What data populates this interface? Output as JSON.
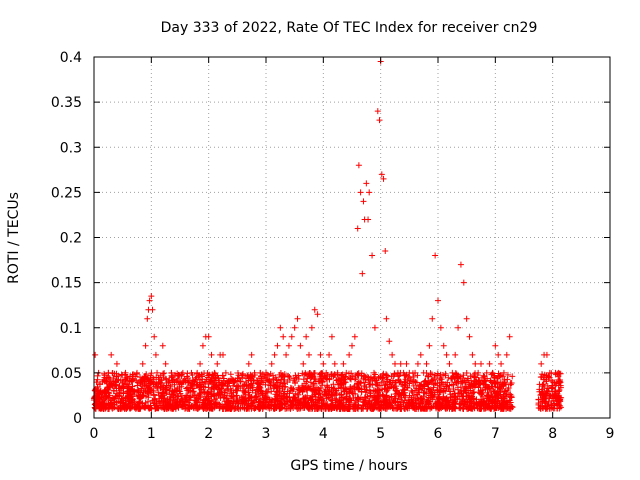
{
  "chart_data": {
    "type": "scatter",
    "title": "Day 333 of 2022, Rate Of TEC Index for receiver cn29",
    "xlabel": "GPS time / hours",
    "ylabel": "ROTI / TECUs",
    "xlim": [
      0,
      9
    ],
    "ylim": [
      0,
      0.4
    ],
    "x_ticks": [
      0,
      1,
      2,
      3,
      4,
      5,
      6,
      7,
      8,
      9
    ],
    "x_tick_labels": [
      "0",
      "1",
      "2",
      "3",
      "4",
      "5",
      "6",
      "7",
      "8",
      "9"
    ],
    "y_ticks": [
      0,
      0.05,
      0.1,
      0.15,
      0.2,
      0.25,
      0.3,
      0.35,
      0.4
    ],
    "y_tick_labels": [
      "0",
      "0.05",
      "0.1",
      "0.15",
      "0.2",
      "0.25",
      "0.3",
      "0.35",
      "0.4"
    ],
    "grid": true,
    "marker": "+",
    "color": "#ff0000",
    "series": [
      {
        "name": "ROTI",
        "x": [
          0.0,
          0.02,
          0.05,
          0.08,
          0.1,
          0.12,
          0.15,
          0.18,
          0.2,
          0.25,
          0.3,
          0.35,
          0.38,
          0.4,
          0.45,
          0.5,
          0.55,
          0.6,
          0.65,
          0.7,
          0.75,
          0.8,
          0.85,
          0.9,
          0.93,
          0.95,
          0.97,
          1.0,
          1.02,
          1.05,
          1.08,
          1.1,
          1.15,
          1.2,
          1.25,
          1.3,
          1.35,
          1.4,
          1.45,
          1.5,
          1.55,
          1.6,
          1.65,
          1.7,
          1.75,
          1.8,
          1.85,
          1.9,
          1.95,
          2.0,
          2.05,
          2.1,
          2.15,
          2.2,
          2.25,
          2.3,
          2.35,
          2.4,
          2.45,
          2.5,
          2.55,
          2.6,
          2.65,
          2.7,
          2.75,
          2.8,
          2.85,
          2.9,
          2.95,
          3.0,
          3.05,
          3.1,
          3.15,
          3.2,
          3.25,
          3.3,
          3.35,
          3.4,
          3.45,
          3.5,
          3.55,
          3.6,
          3.65,
          3.7,
          3.75,
          3.8,
          3.85,
          3.9,
          3.95,
          4.0,
          4.05,
          4.1,
          4.15,
          4.2,
          4.25,
          4.3,
          4.35,
          4.4,
          4.45,
          4.5,
          4.55,
          4.6,
          4.62,
          4.65,
          4.68,
          4.7,
          4.72,
          4.75,
          4.78,
          4.8,
          4.85,
          4.9,
          4.95,
          4.98,
          5.0,
          5.02,
          5.05,
          5.08,
          5.1,
          5.15,
          5.2,
          5.25,
          5.3,
          5.35,
          5.4,
          5.45,
          5.5,
          5.55,
          5.6,
          5.65,
          5.7,
          5.75,
          5.8,
          5.85,
          5.9,
          5.95,
          6.0,
          6.05,
          6.1,
          6.15,
          6.2,
          6.25,
          6.3,
          6.35,
          6.4,
          6.45,
          6.5,
          6.55,
          6.6,
          6.65,
          6.7,
          6.75,
          6.8,
          6.85,
          6.9,
          6.95,
          7.0,
          7.05,
          7.1,
          7.15,
          7.2,
          7.25,
          7.8,
          7.85,
          7.9,
          7.95,
          8.0,
          8.05,
          8.1
        ],
        "y": [
          0.02,
          0.07,
          0.03,
          0.05,
          0.02,
          0.03,
          0.04,
          0.02,
          0.03,
          0.05,
          0.07,
          0.03,
          0.04,
          0.06,
          0.03,
          0.04,
          0.05,
          0.03,
          0.04,
          0.03,
          0.05,
          0.04,
          0.06,
          0.08,
          0.11,
          0.12,
          0.13,
          0.135,
          0.12,
          0.09,
          0.07,
          0.05,
          0.04,
          0.08,
          0.06,
          0.04,
          0.05,
          0.04,
          0.03,
          0.04,
          0.05,
          0.04,
          0.03,
          0.05,
          0.04,
          0.05,
          0.06,
          0.08,
          0.09,
          0.09,
          0.07,
          0.05,
          0.06,
          0.07,
          0.07,
          0.05,
          0.04,
          0.03,
          0.04,
          0.03,
          0.04,
          0.03,
          0.04,
          0.06,
          0.07,
          0.05,
          0.04,
          0.05,
          0.04,
          0.05,
          0.04,
          0.06,
          0.07,
          0.08,
          0.1,
          0.09,
          0.07,
          0.08,
          0.09,
          0.1,
          0.11,
          0.08,
          0.06,
          0.09,
          0.07,
          0.1,
          0.12,
          0.115,
          0.07,
          0.06,
          0.05,
          0.07,
          0.09,
          0.06,
          0.05,
          0.04,
          0.06,
          0.05,
          0.07,
          0.08,
          0.09,
          0.21,
          0.28,
          0.25,
          0.16,
          0.24,
          0.22,
          0.26,
          0.22,
          0.25,
          0.18,
          0.1,
          0.34,
          0.33,
          0.395,
          0.27,
          0.265,
          0.185,
          0.11,
          0.085,
          0.07,
          0.06,
          0.05,
          0.06,
          0.05,
          0.06,
          0.05,
          0.04,
          0.05,
          0.06,
          0.07,
          0.05,
          0.06,
          0.08,
          0.11,
          0.18,
          0.13,
          0.1,
          0.08,
          0.07,
          0.06,
          0.05,
          0.07,
          0.1,
          0.17,
          0.15,
          0.11,
          0.09,
          0.07,
          0.06,
          0.05,
          0.06,
          0.04,
          0.05,
          0.06,
          0.05,
          0.08,
          0.07,
          0.06,
          0.05,
          0.07,
          0.09,
          0.06,
          0.07,
          0.07,
          0.05,
          0.04,
          0.05,
          0.05
        ]
      }
    ],
    "baseline_cloud": {
      "x_ranges": [
        [
          0.0,
          7.3
        ],
        [
          7.75,
          8.15
        ]
      ],
      "y_range": [
        0.01,
        0.05
      ]
    }
  }
}
